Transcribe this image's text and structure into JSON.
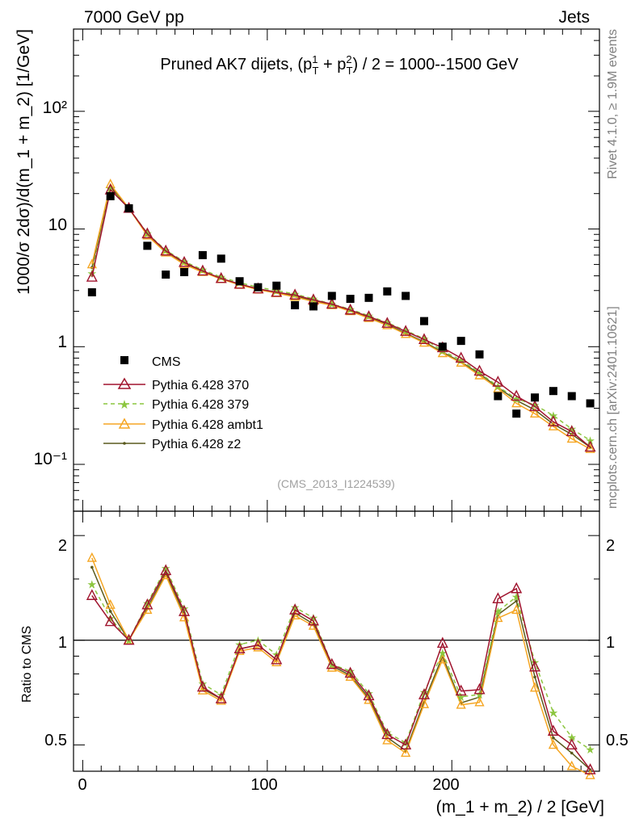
{
  "header": {
    "left": "7000 GeV pp",
    "right": "Jets",
    "side_top": "Rivet 4.1.0, ≥ 1.9M events",
    "side_bottom": "mcplots.cern.ch [arXiv:2401.10621]"
  },
  "main_panel": {
    "title_prefix": "Pruned AK7 dijets, (p",
    "title_suffix": ") / 2 = 1000--1500 GeV",
    "ylabel": "1000/σ   2dσ)/d(m_1 + m_2) [1/GeV]",
    "watermark": "(CMS_2013_I1224539)",
    "yticks": [
      "10⁻¹",
      "1",
      "10",
      "10²"
    ]
  },
  "ratio_panel": {
    "ylabel": "Ratio to CMS",
    "yticks": [
      "0.5",
      "1",
      "2"
    ]
  },
  "xaxis": {
    "label": "(m_1 + m_2) / 2 [GeV]",
    "ticks": [
      "0",
      "100",
      "200"
    ]
  },
  "legend": [
    {
      "label": "CMS"
    },
    {
      "label": "Pythia 6.428 370"
    },
    {
      "label": "Pythia 6.428 379"
    },
    {
      "label": "Pythia 6.428 ambt1"
    },
    {
      "label": "Pythia 6.428 z2"
    }
  ],
  "chart_data": {
    "type": "line",
    "title": "Pruned AK7 dijets, (p_T^1 + p_T^2) / 2 = 1000--1500 GeV",
    "xlabel": "(m_1 + m_2) / 2 [GeV]",
    "ylabel": "1000/σ 2dσ)/d(m_1 + m_2) [1/GeV]",
    "xlim": [
      -5,
      280
    ],
    "ylim": [
      0.04,
      500
    ],
    "yscale": "log",
    "ratio_ylim": [
      0.42,
      2.35
    ],
    "x": [
      5,
      15,
      25,
      35,
      45,
      55,
      65,
      75,
      85,
      95,
      105,
      115,
      125,
      135,
      145,
      155,
      165,
      175,
      185,
      195,
      205,
      215,
      225,
      235,
      245,
      255,
      265,
      275
    ],
    "series": [
      {
        "name": "CMS",
        "color": "#000000",
        "values": [
          2.9,
          19.0,
          15.0,
          7.2,
          4.1,
          4.3,
          6.0,
          5.6,
          3.6,
          3.2,
          3.3,
          2.25,
          2.2,
          2.7,
          2.55,
          2.6,
          2.95,
          2.7,
          1.65,
          1.0,
          1.12,
          0.86,
          0.38,
          0.27,
          0.37,
          0.42,
          0.38,
          0.33
        ]
      },
      {
        "name": "Pythia 6.428 370",
        "color": "#a0142e",
        "values": [
          3.9,
          21.5,
          15.0,
          9.1,
          6.5,
          5.2,
          4.4,
          3.8,
          3.4,
          3.1,
          2.9,
          2.75,
          2.5,
          2.3,
          2.05,
          1.8,
          1.58,
          1.35,
          1.15,
          0.98,
          0.8,
          0.62,
          0.5,
          0.38,
          0.31,
          0.23,
          0.19,
          0.14
        ]
      },
      {
        "name": "Pythia 6.428 379",
        "color": "#8cc63f",
        "values": [
          4.2,
          22.0,
          15.0,
          9.2,
          6.6,
          5.3,
          4.5,
          3.9,
          3.5,
          3.2,
          3.0,
          2.8,
          2.55,
          2.3,
          2.08,
          1.83,
          1.6,
          1.37,
          1.17,
          0.92,
          0.77,
          0.6,
          0.46,
          0.36,
          0.32,
          0.26,
          0.2,
          0.16
        ]
      },
      {
        "name": "Pythia 6.428 ambt1",
        "color": "#f5a623",
        "values": [
          5.0,
          24.0,
          15.0,
          8.8,
          6.3,
          5.0,
          4.3,
          3.75,
          3.35,
          3.05,
          2.85,
          2.65,
          2.42,
          2.25,
          2.0,
          1.75,
          1.52,
          1.28,
          1.08,
          0.88,
          0.73,
          0.57,
          0.44,
          0.33,
          0.27,
          0.21,
          0.165,
          0.135
        ]
      },
      {
        "name": "Pythia 6.428 z2",
        "color": "#5a5a1e",
        "values": [
          4.7,
          23.0,
          15.0,
          8.9,
          6.4,
          5.1,
          4.35,
          3.8,
          3.4,
          3.1,
          2.9,
          2.7,
          2.45,
          2.28,
          2.02,
          1.77,
          1.55,
          1.3,
          1.1,
          0.9,
          0.74,
          0.59,
          0.45,
          0.35,
          0.29,
          0.22,
          0.18,
          0.14
        ]
      }
    ]
  }
}
